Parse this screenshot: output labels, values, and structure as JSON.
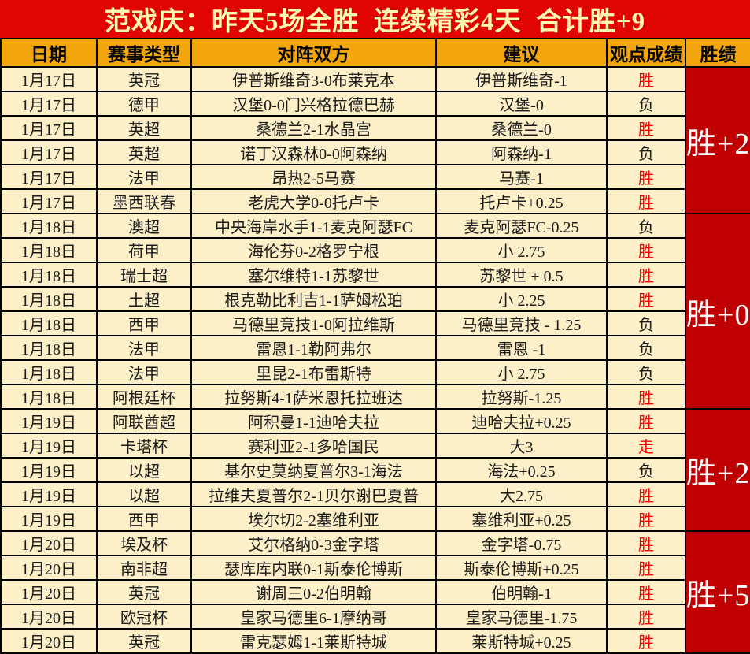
{
  "title": "范戏庆：昨天5场全胜  连续精彩4天  合计胜+9",
  "columns": [
    "日期",
    "赛事类型",
    "对阵双方",
    "建议",
    "观点成绩",
    "胜绩"
  ],
  "colors": {
    "title_bg": "#e00500",
    "title_text": "#fffab4",
    "header_bg": "#f2a50c",
    "cell_bg": "#fdf0c8",
    "streak_bg": "#c00000",
    "streak_text": "#ffffff",
    "win_text": "#ff0000",
    "loss_text": "#1a1a1a"
  },
  "rows": [
    {
      "date": "1月17日",
      "league": "英冠",
      "match": "伊普斯维奇3-0布莱克本",
      "advice": "伊普斯维奇-1",
      "result": "胜",
      "result_color": "red"
    },
    {
      "date": "1月17日",
      "league": "德甲",
      "match": "汉堡0-0门兴格拉德巴赫",
      "advice": "汉堡-0",
      "result": "负",
      "result_color": "black"
    },
    {
      "date": "1月17日",
      "league": "英超",
      "match": "桑德兰2-1水晶宫",
      "advice": "桑德兰-0",
      "result": "胜",
      "result_color": "red"
    },
    {
      "date": "1月17日",
      "league": "英超",
      "match": "诺丁汉森林0-0阿森纳",
      "advice": "阿森纳-1",
      "result": "负",
      "result_color": "black"
    },
    {
      "date": "1月17日",
      "league": "法甲",
      "match": "昂热2-5马赛",
      "advice": "马赛-1",
      "result": "胜",
      "result_color": "red"
    },
    {
      "date": "1月17日",
      "league": "墨西联春",
      "match": "老虎大学0-0托卢卡",
      "advice": "托卢卡+0.25",
      "result": "胜",
      "result_color": "red"
    },
    {
      "date": "1月18日",
      "league": "澳超",
      "match": "中央海岸水手1-1麦克阿瑟FC",
      "advice": "麦克阿瑟FC-0.25",
      "result": "负",
      "result_color": "black"
    },
    {
      "date": "1月18日",
      "league": "荷甲",
      "match": "海伦芬0-2格罗宁根",
      "advice": "小 2.75",
      "result": "胜",
      "result_color": "red"
    },
    {
      "date": "1月18日",
      "league": "瑞士超",
      "match": "塞尔维特1-1苏黎世",
      "advice": "苏黎世 + 0.5",
      "result": "胜",
      "result_color": "red"
    },
    {
      "date": "1月18日",
      "league": "土超",
      "match": "根克勒比利吉1-1萨姆松珀",
      "advice": "小 2.25",
      "result": "胜",
      "result_color": "red"
    },
    {
      "date": "1月18日",
      "league": "西甲",
      "match": "马德里竞技1-0阿拉维斯",
      "advice": "马德里竞技 - 1.25",
      "result": "负",
      "result_color": "black"
    },
    {
      "date": "1月18日",
      "league": "法甲",
      "match": "雷恩1-1勒阿弗尔",
      "advice": "雷恩 -1",
      "result": "负",
      "result_color": "black"
    },
    {
      "date": "1月18日",
      "league": "法甲",
      "match": "里昆2-1布雷斯特",
      "advice": "小 2.75",
      "result": "负",
      "result_color": "black"
    },
    {
      "date": "1月18日",
      "league": "阿根廷杯",
      "match": "拉努斯4-1萨米恩托拉班达",
      "advice": "拉努斯-1.25",
      "result": "胜",
      "result_color": "red"
    },
    {
      "date": "1月19日",
      "league": "阿联酋超",
      "match": "阿积曼1-1迪哈夫拉",
      "advice": "迪哈夫拉+0.25",
      "result": "胜",
      "result_color": "red"
    },
    {
      "date": "1月19日",
      "league": "卡塔杯",
      "match": "赛利亚2-1多哈国民",
      "advice": "大3",
      "result": "走",
      "result_color": "red"
    },
    {
      "date": "1月19日",
      "league": "以超",
      "match": "基尔史莫纳夏普尔3-1海法",
      "advice": "海法+0.25",
      "result": "负",
      "result_color": "black"
    },
    {
      "date": "1月19日",
      "league": "以超",
      "match": "拉维夫夏普尔2-1贝尔谢巴夏普",
      "advice": "大2.75",
      "result": "胜",
      "result_color": "red"
    },
    {
      "date": "1月19日",
      "league": "西甲",
      "match": "埃尔切2-2塞维利亚",
      "advice": "塞维利亚+0.25",
      "result": "胜",
      "result_color": "red"
    },
    {
      "date": "1月20日",
      "league": "埃及杯",
      "match": "艾尔格纳0-3金字塔",
      "advice": "金字塔-0.75",
      "result": "胜",
      "result_color": "red"
    },
    {
      "date": "1月20日",
      "league": "南非超",
      "match": "瑟库库内联0-1斯泰伦博斯",
      "advice": "斯泰伦博斯+0.25",
      "result": "胜",
      "result_color": "red"
    },
    {
      "date": "1月20日",
      "league": "英冠",
      "match": "谢周三0-2伯明翰",
      "advice": "伯明翰-1",
      "result": "胜",
      "result_color": "red"
    },
    {
      "date": "1月20日",
      "league": "欧冠杯",
      "match": "皇家马德里6-1摩纳哥",
      "advice": "皇家马德里-1.75",
      "result": "胜",
      "result_color": "red"
    },
    {
      "date": "1月20日",
      "league": "英冠",
      "match": "雷克瑟姆1-1莱斯特城",
      "advice": "莱斯特城+0.25",
      "result": "胜",
      "result_color": "red"
    }
  ],
  "streak_groups": [
    {
      "label": "胜+2",
      "rows": 6
    },
    {
      "label": "胜+0",
      "rows": 8
    },
    {
      "label": "胜+2",
      "rows": 5
    },
    {
      "label": "胜+5",
      "rows": 5
    }
  ]
}
